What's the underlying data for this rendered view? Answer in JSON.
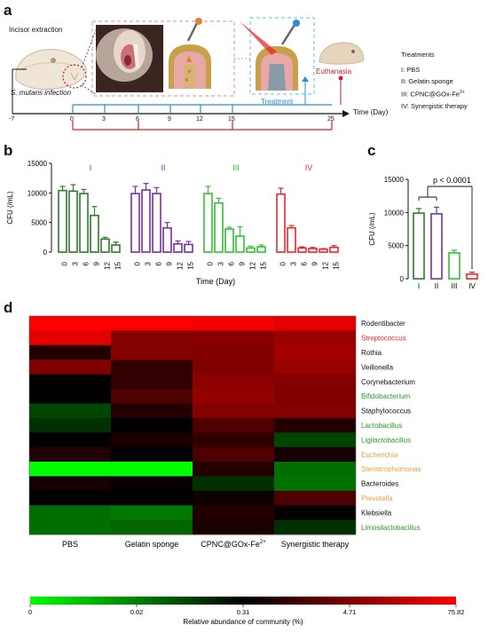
{
  "panels": {
    "a": "a",
    "b": "b",
    "c": "c",
    "d": "d"
  },
  "panel_a": {
    "incisor_extraction": "Incisor extraction",
    "infection_label": "S. mutans infection",
    "euthanasia": "Euthanasia",
    "treatment": "Treatment",
    "time_label": "Time (Day)",
    "timeline_ticks": [
      "-7",
      "0",
      "3",
      "6",
      "9",
      "12",
      "15",
      "25"
    ],
    "treatments_title": "Treatments",
    "treatments": [
      "I:  PBS",
      "II: Gelatin sponge",
      "III: CPNC@GOx-Fe",
      "IV: Synergistic therapy"
    ],
    "superscript": "2+",
    "colors": {
      "treatment_line": "#2b8fd6",
      "euthanasia": "#d0202a",
      "dash_pink": "#e88a9a",
      "dash_blue": "#55c3e8"
    }
  },
  "chart_data": [
    {
      "id": "b",
      "type": "bar",
      "ylabel": "CFU (/mL)",
      "xlabel": "Time (Day)",
      "ylim": [
        0,
        15000
      ],
      "yticks": [
        "0",
        "5000",
        "10000",
        "15000"
      ],
      "categories": [
        "0",
        "3",
        "6",
        "9",
        "12",
        "15"
      ],
      "series": [
        {
          "name": "I",
          "color": "#2f7a2f",
          "values": [
            10400,
            10300,
            9900,
            6200,
            2200,
            1200
          ],
          "errors": [
            700,
            1100,
            700,
            1500,
            300,
            500
          ]
        },
        {
          "name": "II",
          "color": "#7a2fa0",
          "values": [
            9900,
            10500,
            9900,
            4100,
            1400,
            1300
          ],
          "errors": [
            1200,
            1100,
            1000,
            900,
            500,
            500
          ]
        },
        {
          "name": "III",
          "color": "#33c033",
          "values": [
            9900,
            8300,
            3900,
            2700,
            700,
            900
          ],
          "errors": [
            1200,
            800,
            300,
            1600,
            300,
            300
          ]
        },
        {
          "name": "IV",
          "color": "#e8282c",
          "values": [
            9800,
            4100,
            700,
            600,
            500,
            800
          ],
          "errors": [
            1000,
            400,
            200,
            200,
            100,
            300
          ]
        }
      ]
    },
    {
      "id": "c",
      "type": "bar",
      "ylabel": "CFU (/mL)",
      "ylim": [
        0,
        15000
      ],
      "yticks": [
        "0",
        "5000",
        "10000",
        "15000"
      ],
      "categories": [
        "I",
        "II",
        "III",
        "IV"
      ],
      "colors": [
        "#2f7a2f",
        "#7a2fa0",
        "#33c033",
        "#e8282c"
      ],
      "values": [
        9900,
        9800,
        3900,
        700
      ],
      "errors": [
        700,
        1000,
        400,
        300
      ],
      "annotation": "p < 0.0001"
    },
    {
      "id": "d",
      "type": "heatmap",
      "columns": [
        "PBS",
        "Gelatin sponge",
        "CPNC@GOx-Fe",
        "Synergistic therapy"
      ],
      "column_superscript": "2+",
      "rows": [
        {
          "name": "Rodentibacter",
          "color": "#111111",
          "values": [
            75,
            75,
            70,
            60
          ]
        },
        {
          "name": "Streptococcus",
          "color": "#e8282c",
          "values": [
            60,
            8,
            10,
            20
          ]
        },
        {
          "name": "Rothia",
          "color": "#111111",
          "values": [
            1.5,
            8,
            6,
            25
          ]
        },
        {
          "name": "Veillonella",
          "color": "#111111",
          "values": [
            5,
            2,
            5,
            20
          ]
        },
        {
          "name": "Corynebacterium",
          "color": "#111111",
          "values": [
            0.31,
            2,
            12,
            8
          ]
        },
        {
          "name": "Bifidobacterium",
          "color": "#2a9a2a",
          "values": [
            0.31,
            3,
            15,
            5
          ]
        },
        {
          "name": "Staphylococcus",
          "color": "#111111",
          "values": [
            0.15,
            1.5,
            8,
            8
          ]
        },
        {
          "name": "Lactobacillus",
          "color": "#2a9a2a",
          "values": [
            0.2,
            0.31,
            3,
            1.5
          ]
        },
        {
          "name": "Ligilactobacillus",
          "color": "#2a9a2a",
          "values": [
            0.31,
            1.2,
            2,
            0.15
          ]
        },
        {
          "name": "Escherichia",
          "color": "#e8a040",
          "values": [
            1.5,
            0.31,
            3,
            1
          ]
        },
        {
          "name": "Stenotrophomonas",
          "color": "#e8a040",
          "values": [
            0,
            0,
            1.5,
            0.06
          ]
        },
        {
          "name": "Bacteroides",
          "color": "#111111",
          "values": [
            1,
            0.5,
            0.2,
            0.05
          ]
        },
        {
          "name": "Prevotella",
          "color": "#e8a040",
          "values": [
            0.31,
            0.31,
            0.8,
            3
          ]
        },
        {
          "name": "Klebsiella",
          "color": "#111111",
          "values": [
            0.06,
            0.04,
            1.5,
            0.5
          ]
        },
        {
          "name": "Limosilactobacillus",
          "color": "#2a9a2a",
          "values": [
            0.06,
            0.08,
            1.2,
            0.2
          ]
        }
      ],
      "colorbar": {
        "label": "Relative abundance of community (%)",
        "ticks": [
          "0",
          "0.02",
          "0.31",
          "4.71",
          "75.82"
        ],
        "tick_values": [
          0,
          0.02,
          0.31,
          4.71,
          75.82
        ],
        "colors": [
          "#00ff00",
          "#000000",
          "#ff0000"
        ]
      }
    }
  ]
}
